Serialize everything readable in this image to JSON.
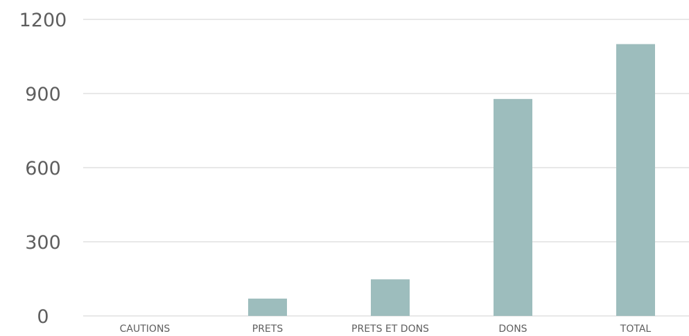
{
  "chart_data": {
    "type": "bar",
    "categories": [
      "CAUTIONS",
      "PRETS",
      "PRETS ET DONS",
      "DONS",
      "TOTAL"
    ],
    "values": [
      0,
      70,
      148,
      878,
      1100
    ],
    "ylim": [
      0,
      1200
    ],
    "yticks": [
      0,
      300,
      600,
      900,
      1200
    ],
    "grid": true,
    "bar_color": "#9dbdbd",
    "gridline_color": "#d9d9d9",
    "text_color": "#5e5e5e"
  }
}
